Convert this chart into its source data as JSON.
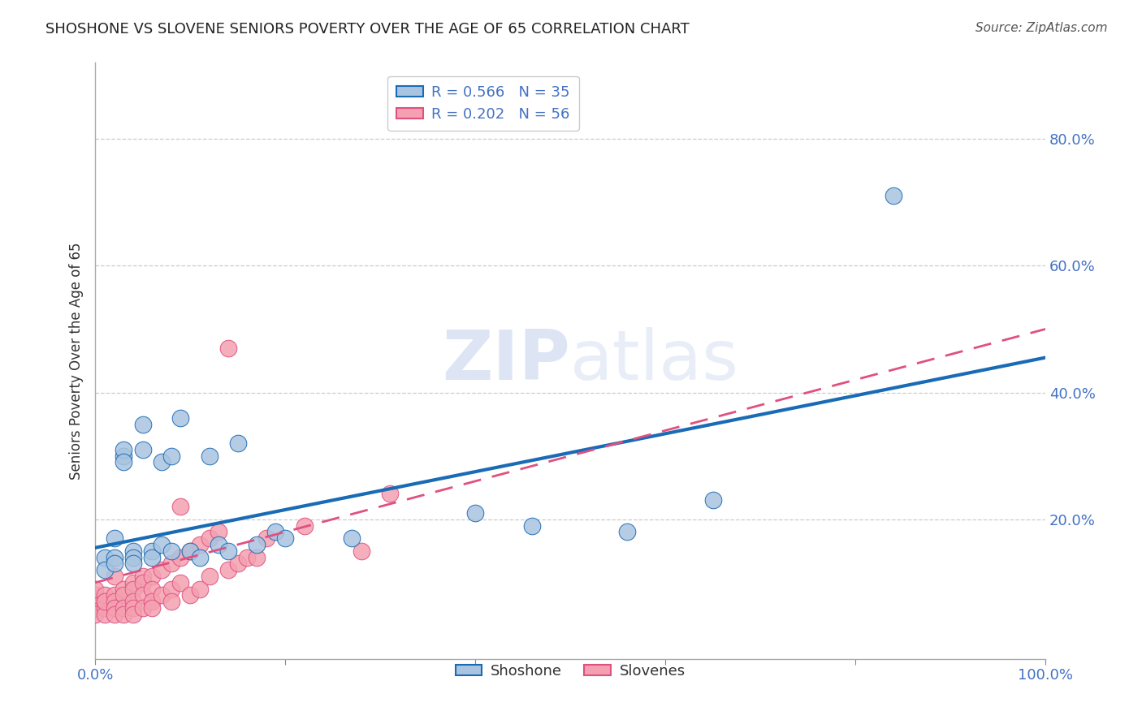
{
  "title": "SHOSHONE VS SLOVENE SENIORS POVERTY OVER THE AGE OF 65 CORRELATION CHART",
  "source": "Source: ZipAtlas.com",
  "ylabel": "Seniors Poverty Over the Age of 65",
  "xlim": [
    0.0,
    1.0
  ],
  "ylim": [
    -0.02,
    0.92
  ],
  "xticks": [
    0.0,
    0.2,
    0.4,
    0.6,
    0.8,
    1.0
  ],
  "yticks": [
    0.2,
    0.4,
    0.6,
    0.8
  ],
  "xticklabels": [
    "0.0%",
    "",
    "",
    "",
    "",
    "100.0%"
  ],
  "yticklabels": [
    "20.0%",
    "40.0%",
    "60.0%",
    "80.0%"
  ],
  "legend_label1": "R = 0.566   N = 35",
  "legend_label2": "R = 0.202   N = 56",
  "legend_labels_bottom": [
    "Shoshone",
    "Slovenes"
  ],
  "shoshone_color": "#a8c4e0",
  "slovene_color": "#f4a0b0",
  "shoshone_line_color": "#1a6bb5",
  "slovene_line_color": "#e05080",
  "shoshone_x": [
    0.01,
    0.01,
    0.02,
    0.02,
    0.02,
    0.03,
    0.03,
    0.03,
    0.04,
    0.04,
    0.04,
    0.05,
    0.05,
    0.06,
    0.06,
    0.07,
    0.07,
    0.08,
    0.08,
    0.09,
    0.1,
    0.11,
    0.12,
    0.13,
    0.14,
    0.15,
    0.17,
    0.19,
    0.2,
    0.27,
    0.4,
    0.56,
    0.65,
    0.84,
    0.46
  ],
  "shoshone_y": [
    0.14,
    0.12,
    0.17,
    0.14,
    0.13,
    0.3,
    0.31,
    0.29,
    0.15,
    0.14,
    0.13,
    0.31,
    0.35,
    0.15,
    0.14,
    0.29,
    0.16,
    0.15,
    0.3,
    0.36,
    0.15,
    0.14,
    0.3,
    0.16,
    0.15,
    0.32,
    0.16,
    0.18,
    0.17,
    0.17,
    0.21,
    0.18,
    0.23,
    0.71,
    0.19
  ],
  "slovene_x": [
    0.0,
    0.0,
    0.0,
    0.0,
    0.0,
    0.01,
    0.01,
    0.01,
    0.01,
    0.01,
    0.02,
    0.02,
    0.02,
    0.02,
    0.02,
    0.03,
    0.03,
    0.03,
    0.03,
    0.04,
    0.04,
    0.04,
    0.04,
    0.04,
    0.05,
    0.05,
    0.05,
    0.05,
    0.06,
    0.06,
    0.06,
    0.06,
    0.07,
    0.07,
    0.08,
    0.08,
    0.08,
    0.09,
    0.09,
    0.1,
    0.1,
    0.11,
    0.11,
    0.12,
    0.12,
    0.13,
    0.14,
    0.14,
    0.15,
    0.16,
    0.17,
    0.18,
    0.22,
    0.28,
    0.31,
    0.09
  ],
  "slovene_y": [
    0.06,
    0.07,
    0.08,
    0.05,
    0.09,
    0.07,
    0.06,
    0.05,
    0.08,
    0.07,
    0.08,
    0.07,
    0.06,
    0.05,
    0.11,
    0.09,
    0.08,
    0.06,
    0.05,
    0.1,
    0.09,
    0.07,
    0.06,
    0.05,
    0.11,
    0.1,
    0.08,
    0.06,
    0.11,
    0.09,
    0.07,
    0.06,
    0.12,
    0.08,
    0.13,
    0.09,
    0.07,
    0.14,
    0.1,
    0.15,
    0.08,
    0.16,
    0.09,
    0.17,
    0.11,
    0.18,
    0.47,
    0.12,
    0.13,
    0.14,
    0.14,
    0.17,
    0.19,
    0.15,
    0.24,
    0.22
  ],
  "shoshone_line_x0": 0.0,
  "shoshone_line_y0": 0.155,
  "shoshone_line_x1": 1.0,
  "shoshone_line_y1": 0.455,
  "slovene_line_x0": 0.0,
  "slovene_line_y0": 0.1,
  "slovene_line_x1": 1.0,
  "slovene_line_y1": 0.5,
  "background_color": "#ffffff",
  "grid_color": "#cccccc",
  "tick_color": "#4472c4",
  "title_fontsize": 13,
  "tick_fontsize": 13,
  "ylabel_fontsize": 12
}
